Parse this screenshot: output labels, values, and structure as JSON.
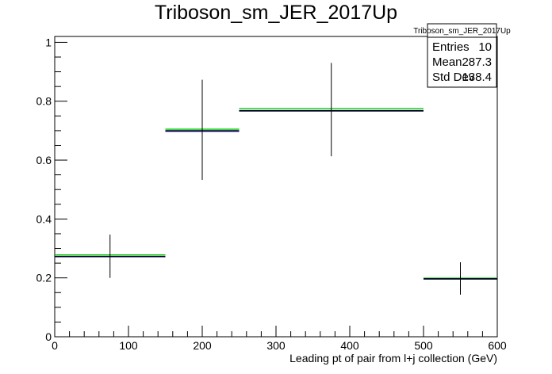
{
  "chart_data": {
    "type": "histogram",
    "title": "Triboson_sm_JER_2017Up",
    "xlabel": "Leading pt of pair from l+j collection (GeV)",
    "ylabel": "",
    "xlim": [
      0,
      600
    ],
    "ylim": [
      0,
      1.02
    ],
    "x_ticks": [
      0,
      100,
      200,
      300,
      400,
      500,
      600
    ],
    "y_ticks": [
      0,
      0.2,
      0.4,
      0.6,
      0.8,
      1
    ],
    "x_tick_labels": [
      "0",
      "100",
      "200",
      "300",
      "400",
      "500",
      "600"
    ],
    "y_tick_labels": [
      "0",
      "0.2",
      "0.4",
      "0.6",
      "0.8",
      "1"
    ],
    "bins": [
      {
        "xlo": 0,
        "xhi": 150,
        "value": 0.273,
        "err_lo": 0.2,
        "err_hi": 0.347
      },
      {
        "xlo": 150,
        "xhi": 250,
        "value": 0.7,
        "err_lo": 0.533,
        "err_hi": 0.873
      },
      {
        "xlo": 250,
        "xhi": 500,
        "value": 0.767,
        "err_lo": 0.613,
        "err_hi": 0.93
      },
      {
        "xlo": 500,
        "xhi": 600,
        "value": 0.197,
        "err_lo": 0.143,
        "err_hi": 0.253
      }
    ],
    "series": [
      {
        "color": "#00cc00",
        "values": [
          0.278,
          0.705,
          0.775,
          0.199
        ]
      },
      {
        "color": "#0000cc",
        "values": [
          0.272,
          0.698,
          0.768,
          0.196
        ]
      },
      {
        "color": "#000000",
        "values": [
          0.273,
          0.7,
          0.767,
          0.197
        ]
      }
    ],
    "stats": {
      "name": "Triboson_sm_JER_2017Up",
      "rows": [
        {
          "label": "Entries",
          "value": "10"
        },
        {
          "label": "Mean",
          "value": "287.3"
        },
        {
          "label": "Std Dev",
          "value": "138.4"
        }
      ]
    }
  }
}
